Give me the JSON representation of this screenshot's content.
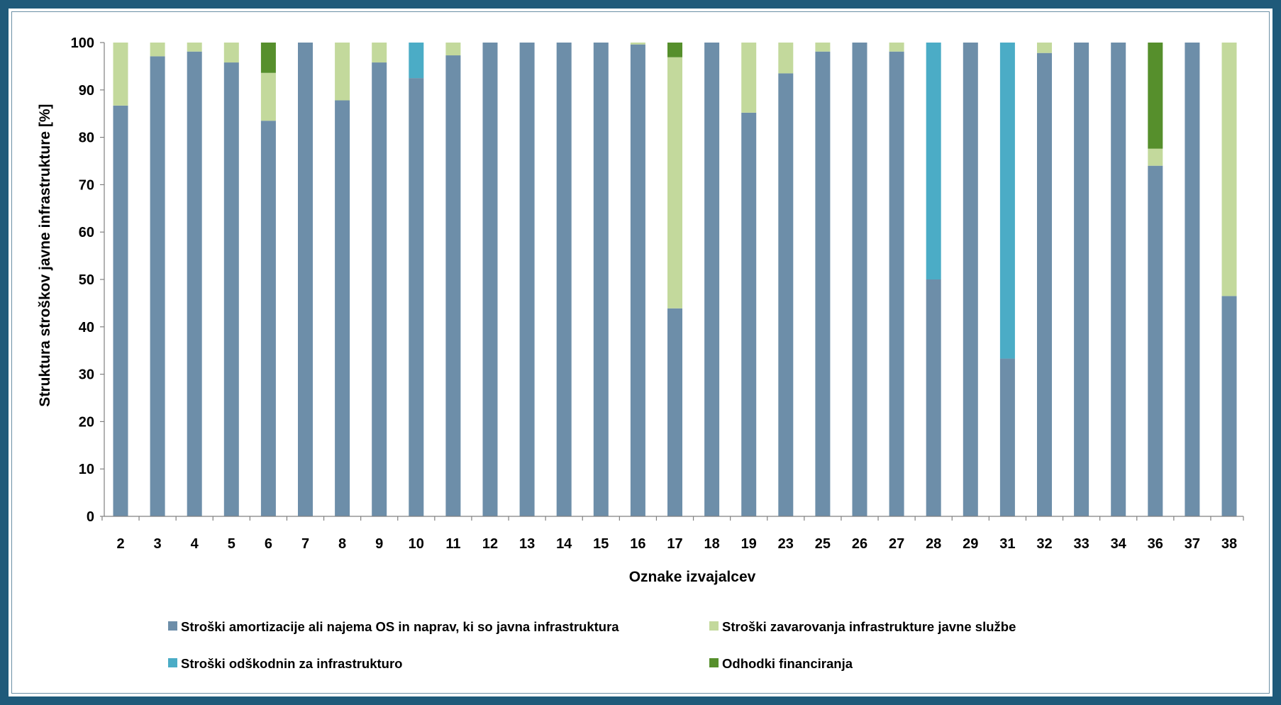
{
  "chart_data": {
    "type": "bar",
    "stacked": true,
    "xlabel": "Oznake izvajalcev",
    "ylabel": "Struktura stroškov  javne infrastrukture  [%]",
    "ylim": [
      0,
      100
    ],
    "yticks": [
      0,
      10,
      20,
      30,
      40,
      50,
      60,
      70,
      80,
      90,
      100
    ],
    "grid": false,
    "legend_position": "bottom",
    "categories": [
      "2",
      "3",
      "4",
      "5",
      "6",
      "7",
      "8",
      "9",
      "10",
      "11",
      "12",
      "13",
      "14",
      "15",
      "16",
      "17",
      "18",
      "19",
      "23",
      "25",
      "26",
      "27",
      "28",
      "29",
      "31",
      "32",
      "33",
      "34",
      "36",
      "37",
      "38"
    ],
    "series": [
      {
        "name": "Stroški amortizacije ali najema OS in naprav, ki so javna infrastruktura",
        "color": "#6d8ea9",
        "values": [
          86.7,
          97.1,
          98.1,
          95.8,
          83.5,
          100,
          87.8,
          95.8,
          92.5,
          97.3,
          100,
          100,
          100,
          100,
          99.6,
          43.9,
          100,
          85.2,
          93.5,
          98.1,
          100,
          98.1,
          50,
          100,
          33.3,
          97.8,
          100,
          100,
          74,
          100,
          46.5
        ]
      },
      {
        "name": "Stroški zavarovanja infrastrukture javne službe",
        "color": "#c3d99c",
        "values": [
          13.3,
          2.9,
          1.9,
          4.2,
          10.1,
          0,
          12.2,
          4.2,
          0,
          2.7,
          0,
          0,
          0,
          0,
          0.4,
          53,
          0,
          14.8,
          6.5,
          1.9,
          0,
          1.9,
          0,
          0,
          0,
          2.2,
          0,
          0,
          3.6,
          0,
          53.5
        ]
      },
      {
        "name": "Stroški odškodnin za infrastrukturo",
        "color": "#4bacc6",
        "values": [
          0,
          0,
          0,
          0,
          0,
          0,
          0,
          0,
          7.5,
          0,
          0,
          0,
          0,
          0,
          0,
          0,
          0,
          0,
          0,
          0,
          0,
          0,
          50,
          0,
          66.7,
          0,
          0,
          0,
          0,
          0,
          0
        ]
      },
      {
        "name": "Odhodki financiranja",
        "color": "#568f2c",
        "values": [
          0,
          0,
          0,
          0,
          6.4,
          0,
          0,
          0,
          0,
          0,
          0,
          0,
          0,
          0,
          0,
          3.1,
          0,
          0,
          0,
          0,
          0,
          0,
          0,
          0,
          0,
          0,
          0,
          0,
          22.4,
          0,
          0
        ]
      }
    ]
  },
  "colors": {
    "frame": "#1f5a7a",
    "axis": "#808080"
  }
}
